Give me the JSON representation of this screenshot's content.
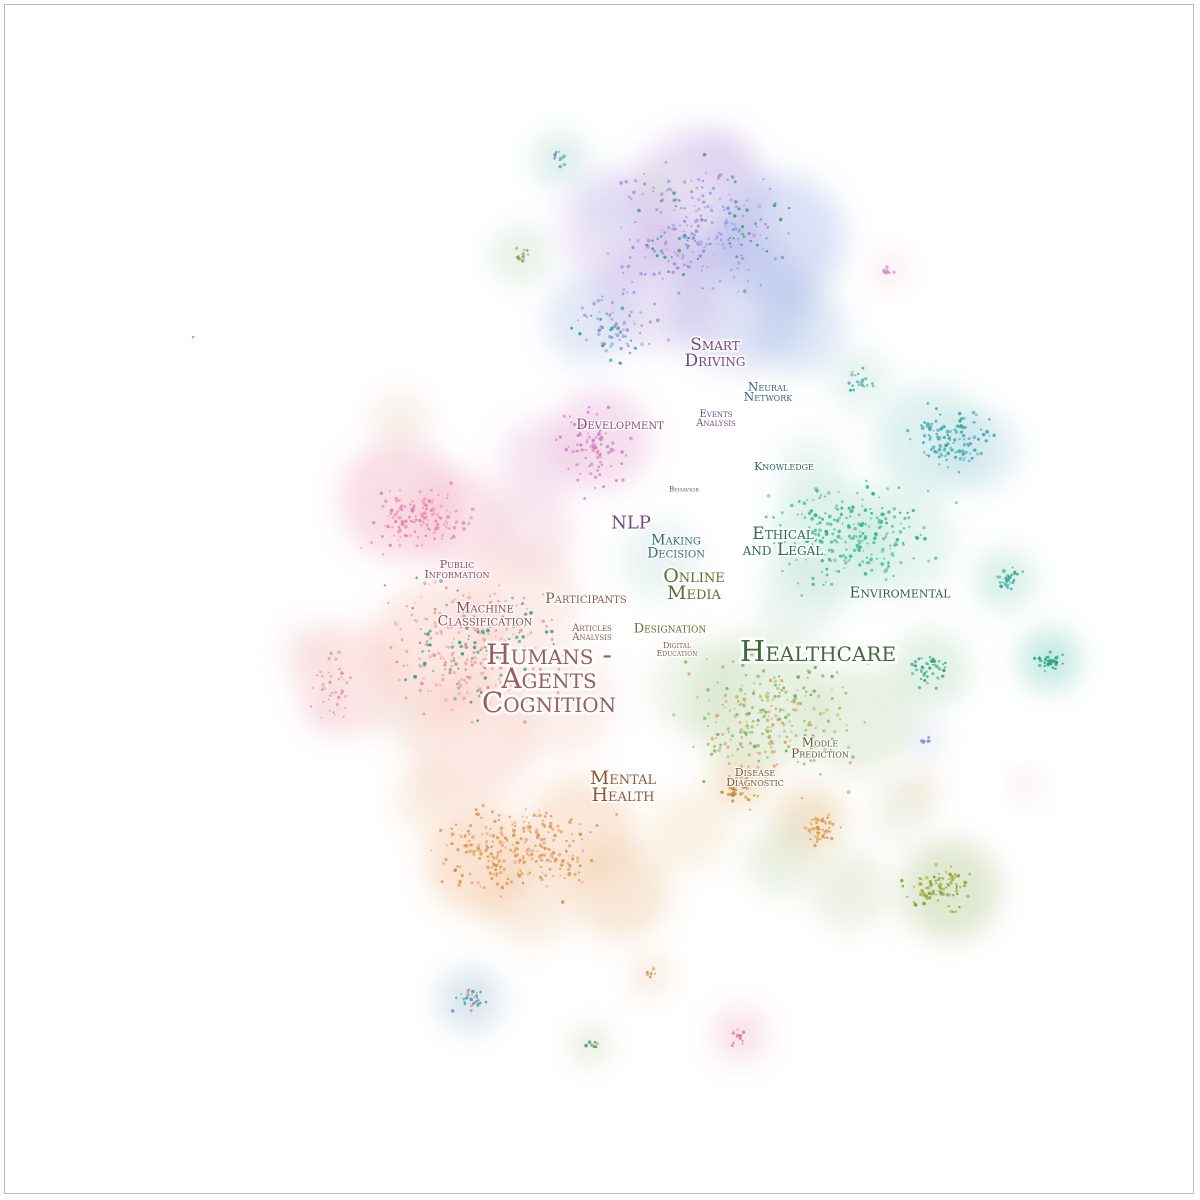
{
  "topics": [
    {
      "id": "smart-driving",
      "lines": [
        "Smart",
        "Driving"
      ],
      "color": "#6f4a86"
    },
    {
      "id": "neural-network",
      "lines": [
        "Neural",
        "Network"
      ],
      "color": "#3d5f79"
    },
    {
      "id": "development",
      "lines": [
        "Development"
      ],
      "color": "#8a4c74"
    },
    {
      "id": "events-analysis",
      "lines": [
        "Events",
        "Analysis"
      ],
      "color": "#6f4a86"
    },
    {
      "id": "knowledge",
      "lines": [
        "Knowledge"
      ],
      "color": "#2f5f66"
    },
    {
      "id": "behavior",
      "lines": [
        "Behavior"
      ],
      "color": "#6f4a86"
    },
    {
      "id": "nlp",
      "lines": [
        "NLP"
      ],
      "color": "#6f4a86"
    },
    {
      "id": "making-decision",
      "lines": [
        "Making",
        "Decision"
      ],
      "color": "#2f6f72"
    },
    {
      "id": "ethical-and-legal",
      "lines": [
        "Ethical",
        "and Legal"
      ],
      "color": "#2f6a5c"
    },
    {
      "id": "public-information",
      "lines": [
        "Public",
        "Information"
      ],
      "color": "#8c4b5b"
    },
    {
      "id": "enviromental",
      "lines": [
        "Enviromental"
      ],
      "color": "#2e6049"
    },
    {
      "id": "online-media",
      "lines": [
        "Online",
        "Media"
      ],
      "color": "#5b6c2e"
    },
    {
      "id": "participants",
      "lines": [
        "Participants"
      ],
      "color": "#8a5a4a"
    },
    {
      "id": "machine-classification",
      "lines": [
        "Machine",
        "Classification"
      ],
      "color": "#8c4b5b"
    },
    {
      "id": "articles-analysis",
      "lines": [
        "Articles",
        "Analysis"
      ],
      "color": "#8a5a4a"
    },
    {
      "id": "designation",
      "lines": [
        "Designation"
      ],
      "color": "#6a6a30"
    },
    {
      "id": "healthcare",
      "lines": [
        "Healthcare"
      ],
      "color": "#3f6a3a"
    },
    {
      "id": "digital-education",
      "lines": [
        "Digital",
        "Education"
      ],
      "color": "#8a5a4a"
    },
    {
      "id": "humans-agents-cognition",
      "lines": [
        "Humans -",
        "Agents",
        "Cognition"
      ],
      "color": "#9a5e5e"
    },
    {
      "id": "modle-prediction",
      "lines": [
        "Modle",
        "Prediction"
      ],
      "color": "#5a5a2a"
    },
    {
      "id": "disease-diagnostic",
      "lines": [
        "Disease",
        "Diagnostic"
      ],
      "color": "#7a5530"
    },
    {
      "id": "mental-health",
      "lines": [
        "Mental",
        "Health"
      ],
      "color": "#8a5a3a"
    }
  ]
}
